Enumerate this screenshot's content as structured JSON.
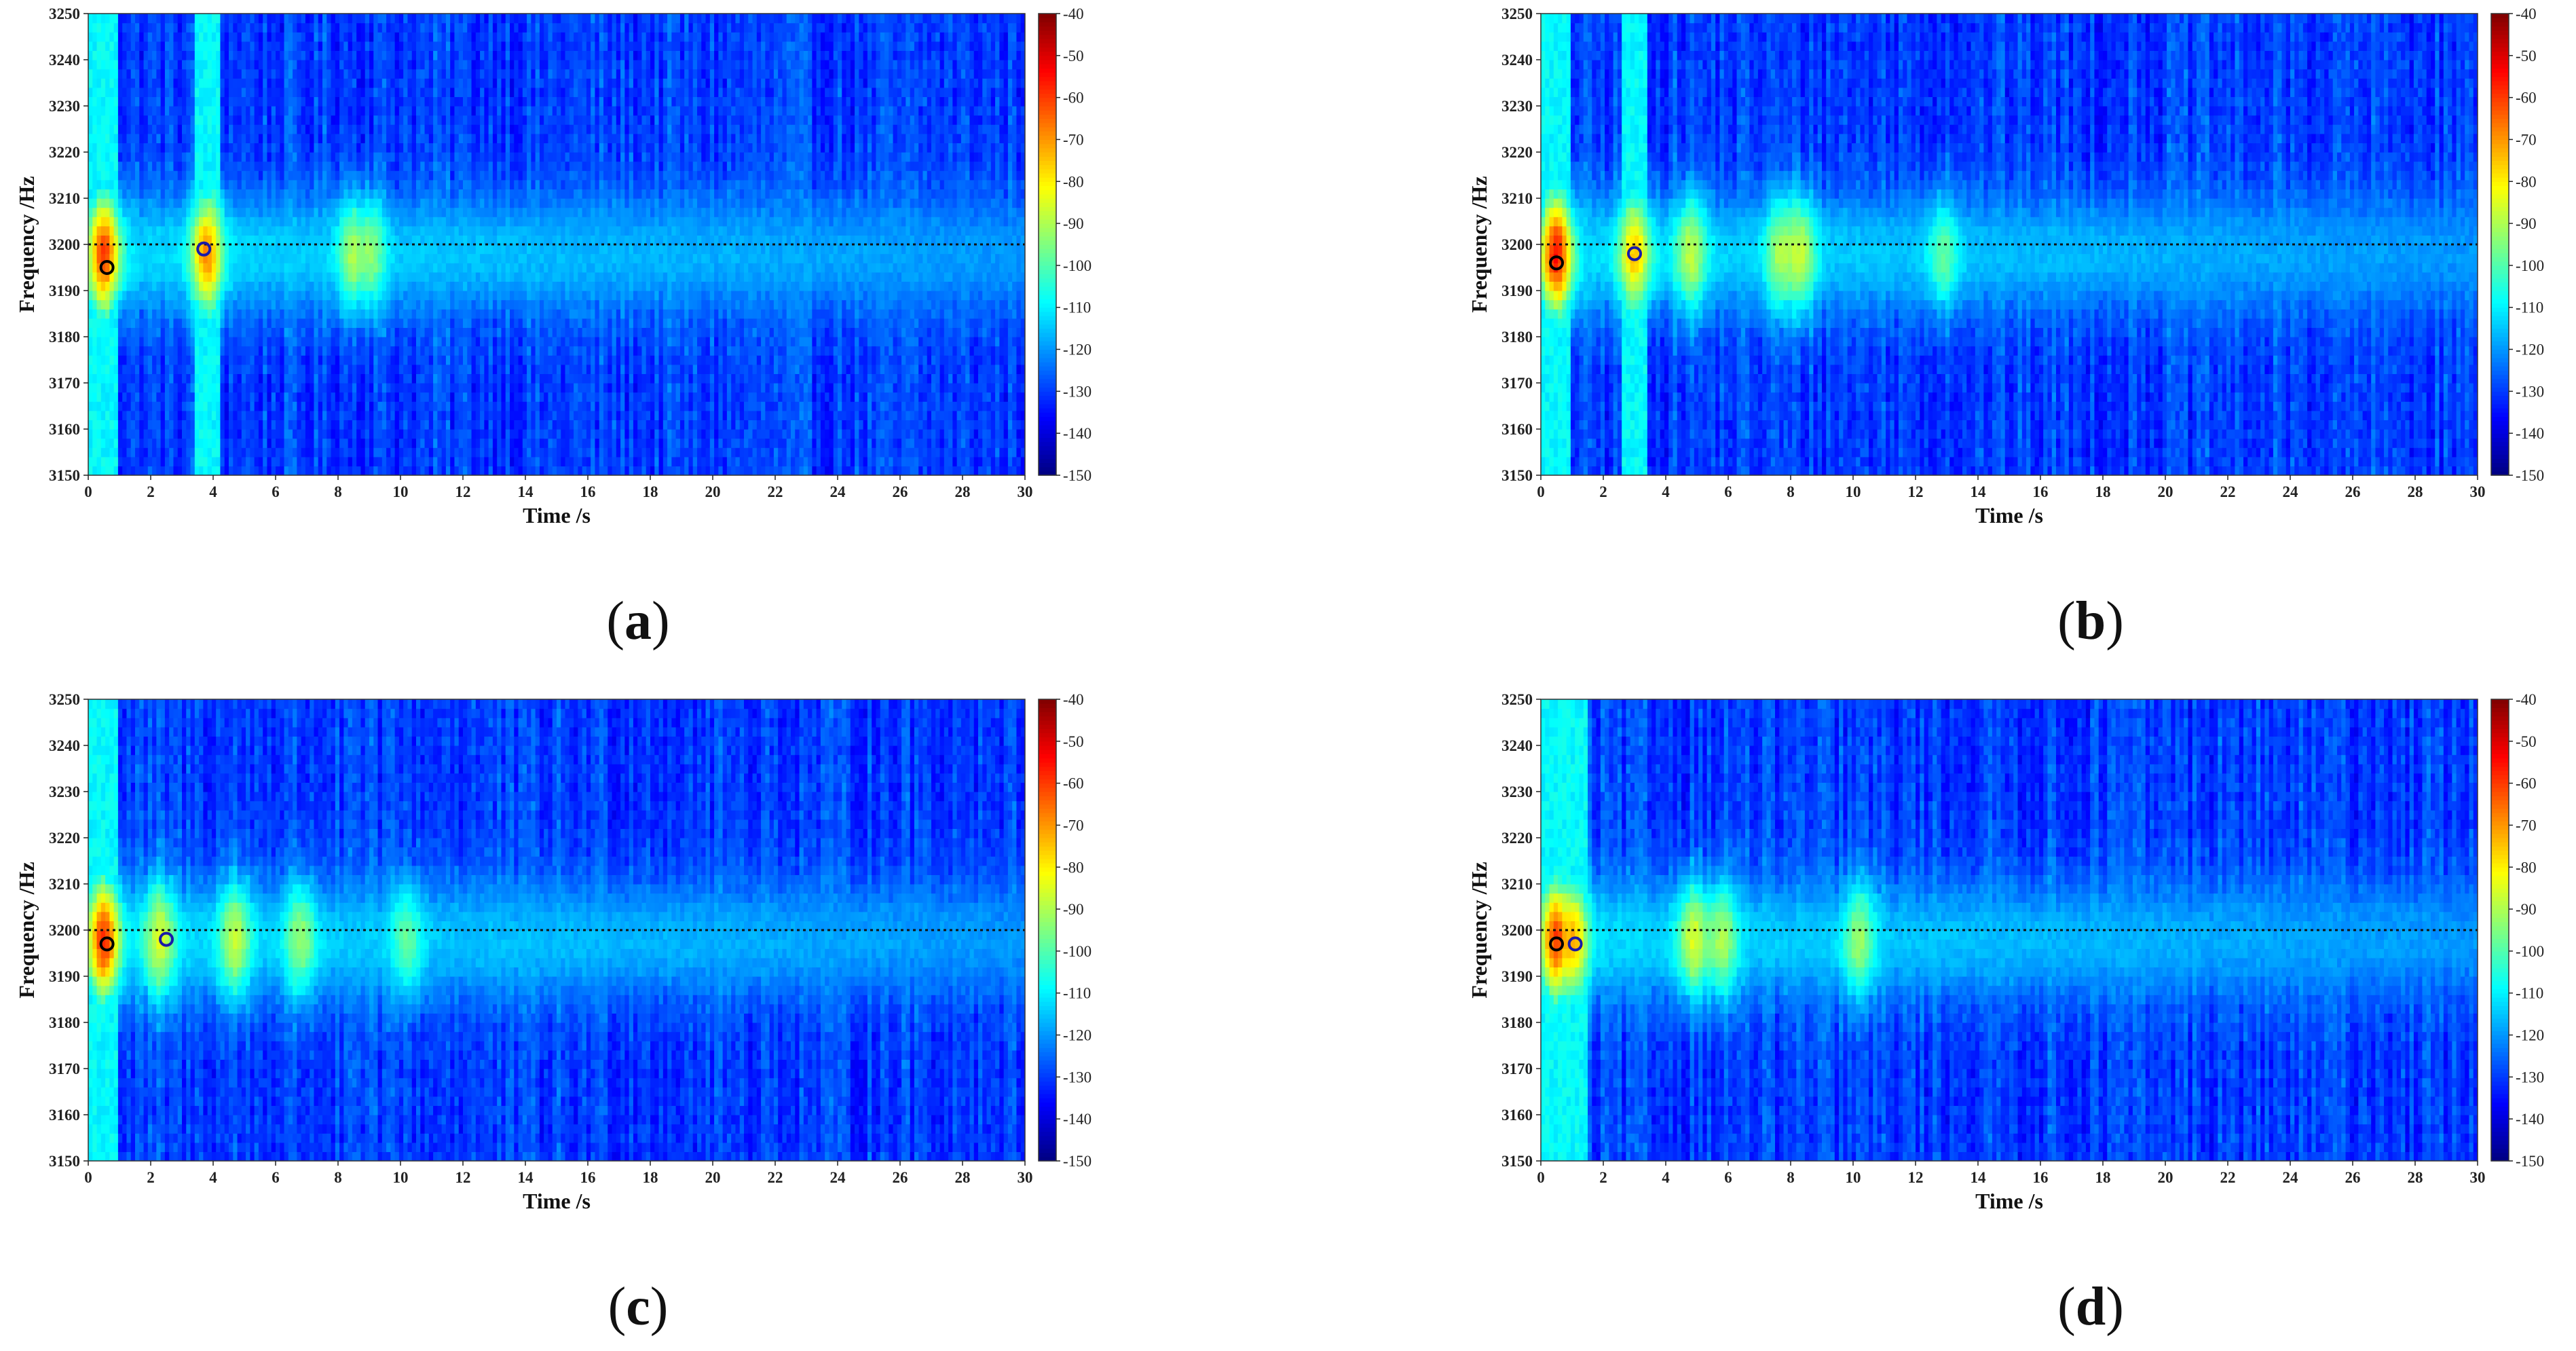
{
  "figure": {
    "panels": [
      {
        "id": "a",
        "label": "a"
      },
      {
        "id": "b",
        "label": "b"
      },
      {
        "id": "c",
        "label": "c"
      },
      {
        "id": "d",
        "label": "d"
      }
    ]
  },
  "chart_data": [
    {
      "type": "heatmap",
      "panel": "a",
      "xlabel": "Time /s",
      "ylabel": "Frequency /Hz",
      "xlim": [
        0,
        30
      ],
      "ylim": [
        3150,
        3250
      ],
      "xticks": [
        0,
        2,
        4,
        6,
        8,
        10,
        12,
        14,
        16,
        18,
        20,
        22,
        24,
        26,
        28,
        30
      ],
      "yticks": [
        3150,
        3160,
        3170,
        3180,
        3190,
        3200,
        3210,
        3220,
        3230,
        3240,
        3250
      ],
      "colorbar": {
        "min": -150,
        "max": -40,
        "ticks": [
          -40,
          -50,
          -60,
          -70,
          -80,
          -90,
          -100,
          -110,
          -120,
          -130,
          -140,
          -150
        ],
        "colormap": "jet"
      },
      "reference_line_hz": 3200,
      "markers": [
        {
          "time": 0.6,
          "freq": 3195,
          "color": "#000000"
        },
        {
          "time": 3.7,
          "freq": 3199,
          "color": "#1a1aa8"
        }
      ],
      "intensity_peaks": [
        {
          "time": 0.5,
          "level_db": -60
        },
        {
          "time": 3.8,
          "level_db": -68
        },
        {
          "time": 8.5,
          "level_db": -90
        },
        {
          "time": 9.0,
          "level_db": -93
        }
      ],
      "band_center_hz": 3198
    },
    {
      "type": "heatmap",
      "panel": "b",
      "xlabel": "Time /s",
      "ylabel": "Frequency /Hz",
      "xlim": [
        0,
        30
      ],
      "ylim": [
        3150,
        3250
      ],
      "xticks": [
        0,
        2,
        4,
        6,
        8,
        10,
        12,
        14,
        16,
        18,
        20,
        22,
        24,
        26,
        28,
        30
      ],
      "yticks": [
        3150,
        3160,
        3170,
        3180,
        3190,
        3200,
        3210,
        3220,
        3230,
        3240,
        3250
      ],
      "colorbar": {
        "min": -150,
        "max": -40,
        "ticks": [
          -40,
          -50,
          -60,
          -70,
          -80,
          -90,
          -100,
          -110,
          -120,
          -130,
          -140,
          -150
        ],
        "colormap": "jet"
      },
      "reference_line_hz": 3200,
      "markers": [
        {
          "time": 0.5,
          "freq": 3196,
          "color": "#000000"
        },
        {
          "time": 3.0,
          "freq": 3198,
          "color": "#1a1aa8"
        }
      ],
      "intensity_peaks": [
        {
          "time": 0.5,
          "level_db": -55
        },
        {
          "time": 3.0,
          "level_db": -75
        },
        {
          "time": 4.8,
          "level_db": -88
        },
        {
          "time": 7.7,
          "level_db": -90
        },
        {
          "time": 8.3,
          "level_db": -87
        },
        {
          "time": 12.9,
          "level_db": -98
        }
      ],
      "band_center_hz": 3198
    },
    {
      "type": "heatmap",
      "panel": "c",
      "xlabel": "Time /s",
      "ylabel": "Frequency /Hz",
      "xlim": [
        0,
        30
      ],
      "ylim": [
        3150,
        3250
      ],
      "xticks": [
        0,
        2,
        4,
        6,
        8,
        10,
        12,
        14,
        16,
        18,
        20,
        22,
        24,
        26,
        28,
        30
      ],
      "yticks": [
        3150,
        3160,
        3170,
        3180,
        3190,
        3200,
        3210,
        3220,
        3230,
        3240,
        3250
      ],
      "colorbar": {
        "min": -150,
        "max": -40,
        "ticks": [
          -40,
          -50,
          -60,
          -70,
          -80,
          -90,
          -100,
          -110,
          -120,
          -130,
          -140,
          -150
        ],
        "colormap": "jet"
      },
      "reference_line_hz": 3200,
      "markers": [
        {
          "time": 0.6,
          "freq": 3197,
          "color": "#000000"
        },
        {
          "time": 2.5,
          "freq": 3198,
          "color": "#1a1aa8"
        }
      ],
      "intensity_peaks": [
        {
          "time": 0.5,
          "level_db": -58
        },
        {
          "time": 2.3,
          "level_db": -85
        },
        {
          "time": 4.7,
          "level_db": -87
        },
        {
          "time": 6.8,
          "level_db": -92
        },
        {
          "time": 10.2,
          "level_db": -98
        }
      ],
      "band_center_hz": 3198
    },
    {
      "type": "heatmap",
      "panel": "d",
      "xlabel": "Time /s",
      "ylabel": "Frequency /Hz",
      "xlim": [
        0,
        30
      ],
      "ylim": [
        3150,
        3250
      ],
      "xticks": [
        0,
        2,
        4,
        6,
        8,
        10,
        12,
        14,
        16,
        18,
        20,
        22,
        24,
        26,
        28,
        30
      ],
      "yticks": [
        3150,
        3160,
        3170,
        3180,
        3190,
        3200,
        3210,
        3220,
        3230,
        3240,
        3250
      ],
      "colorbar": {
        "min": -150,
        "max": -40,
        "ticks": [
          -40,
          -50,
          -60,
          -70,
          -80,
          -90,
          -100,
          -110,
          -120,
          -130,
          -140,
          -150
        ],
        "colormap": "jet"
      },
      "reference_line_hz": 3200,
      "markers": [
        {
          "time": 0.5,
          "freq": 3197,
          "color": "#000000"
        },
        {
          "time": 1.1,
          "freq": 3197,
          "color": "#1a1aa8"
        }
      ],
      "intensity_peaks": [
        {
          "time": 0.5,
          "level_db": -60
        },
        {
          "time": 1.0,
          "level_db": -72
        },
        {
          "time": 4.9,
          "level_db": -85
        },
        {
          "time": 5.8,
          "level_db": -90
        },
        {
          "time": 10.2,
          "level_db": -92
        }
      ],
      "band_center_hz": 3198
    }
  ]
}
